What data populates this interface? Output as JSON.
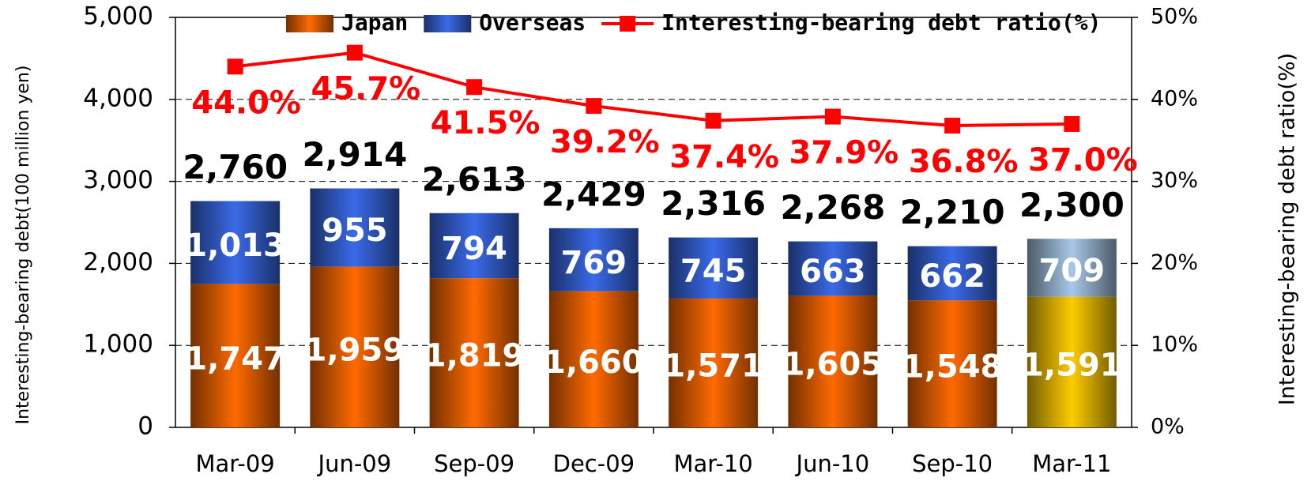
{
  "chart_data": {
    "type": "bar",
    "stacked": true,
    "y_label": "Interesting-bearing debt(100 million yen)",
    "y2_label": "Interesting-bearing debt ratio(%)",
    "categories": [
      "Mar-09",
      "Jun-09",
      "Sep-09",
      "Dec-09",
      "Mar-10",
      "Jun-10",
      "Sep-10",
      "Mar-11"
    ],
    "series": [
      {
        "name": "Japan",
        "type": "bar",
        "colors": [
          "#ff6a00",
          "#ff6a00",
          "#ff6a00",
          "#ff6a00",
          "#ff6a00",
          "#ff6a00",
          "#ff6a00",
          "#ffcc00"
        ],
        "values": [
          1747,
          1959,
          1819,
          1660,
          1571,
          1605,
          1548,
          1591
        ],
        "value_labels": [
          "1,747",
          "1,959",
          "1,819",
          "1,660",
          "1,571",
          "1,605",
          "1,548",
          "1,591"
        ]
      },
      {
        "name": "Overseas",
        "type": "bar",
        "colors": [
          "#3a6ae8",
          "#3a6ae8",
          "#3a6ae8",
          "#3a6ae8",
          "#3a6ae8",
          "#3a6ae8",
          "#3a6ae8",
          "#a8c8e8"
        ],
        "values": [
          1013,
          955,
          794,
          769,
          745,
          663,
          662,
          709
        ],
        "value_labels": [
          "1,013",
          "955",
          "794",
          "769",
          "745",
          "663",
          "662",
          "709"
        ]
      },
      {
        "name": "Interesting-bearing debt ratio(%)",
        "type": "line",
        "axis": "y2",
        "color": "#ff0000",
        "values": [
          44.0,
          45.7,
          41.5,
          39.2,
          37.4,
          37.9,
          36.8,
          37.0
        ],
        "value_labels": [
          "44.0%",
          "45.7%",
          "41.5%",
          "39.2%",
          "37.4%",
          "37.9%",
          "36.8%",
          "37.0%"
        ]
      }
    ],
    "total_labels": [
      "2,760",
      "2,914",
      "2,613",
      "2,429",
      "2,316",
      "2,268",
      "2,210",
      "2,300"
    ],
    "ylim": [
      0,
      5000
    ],
    "yticks": [
      0,
      {
        "value": 1000,
        "label": "1,000"
      },
      {
        "value": 2000,
        "label": "2,000"
      },
      {
        "value": 3000,
        "label": "3,000"
      },
      {
        "value": 4000,
        "label": "4,000"
      },
      {
        "value": 5000,
        "label": "5,000"
      }
    ],
    "y2lim": [
      0,
      50
    ],
    "y2ticks": [
      {
        "value": 0,
        "label": "0%"
      },
      {
        "value": 10,
        "label": "10%"
      },
      {
        "value": 20,
        "label": "20%"
      },
      {
        "value": 30,
        "label": "30%"
      },
      {
        "value": 40,
        "label": "40%"
      },
      {
        "value": 50,
        "label": "50%"
      }
    ],
    "grid": true,
    "legend": "top"
  }
}
